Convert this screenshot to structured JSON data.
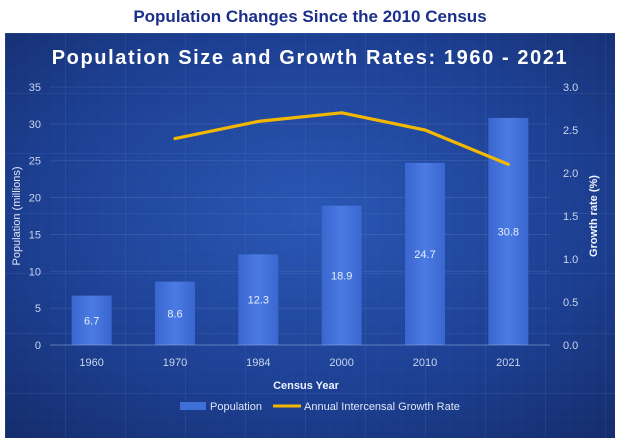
{
  "page": {
    "heading": "Population Changes Since the 2010 Census"
  },
  "colors": {
    "background": "#1b3a86",
    "bar": "#3f6fd8",
    "line": "#f2b800",
    "heading": "#1a2f8a"
  },
  "chart_data": {
    "type": "bar",
    "title": "Population Size and Growth Rates: 1960 - 2021",
    "xlabel": "Census Year",
    "ylabel": "Population (millions)",
    "y2label": "Growth rate (%)",
    "categories": [
      "1960",
      "1970",
      "1984",
      "2000",
      "2010",
      "2021"
    ],
    "ylim": [
      0,
      35
    ],
    "yticks": [
      "0",
      "5",
      "10",
      "15",
      "20",
      "25",
      "30",
      "35"
    ],
    "y2lim": [
      0,
      3.0
    ],
    "y2ticks": [
      "0.0",
      "0.5",
      "1.0",
      "1.5",
      "2.0",
      "2.5",
      "3.0"
    ],
    "series": [
      {
        "name": "Population",
        "type": "bar",
        "axis": "left",
        "values": [
          6.7,
          8.6,
          12.3,
          18.9,
          24.7,
          30.8
        ],
        "labels": [
          "6.7",
          "8.6",
          "12.3",
          "18.9",
          "24.7",
          "30.8"
        ]
      },
      {
        "name": "Annual Intercensal Growth Rate",
        "type": "line",
        "axis": "right",
        "values": [
          null,
          2.4,
          2.6,
          2.7,
          2.5,
          2.1
        ]
      }
    ],
    "grid": true,
    "legend_position": "bottom"
  }
}
